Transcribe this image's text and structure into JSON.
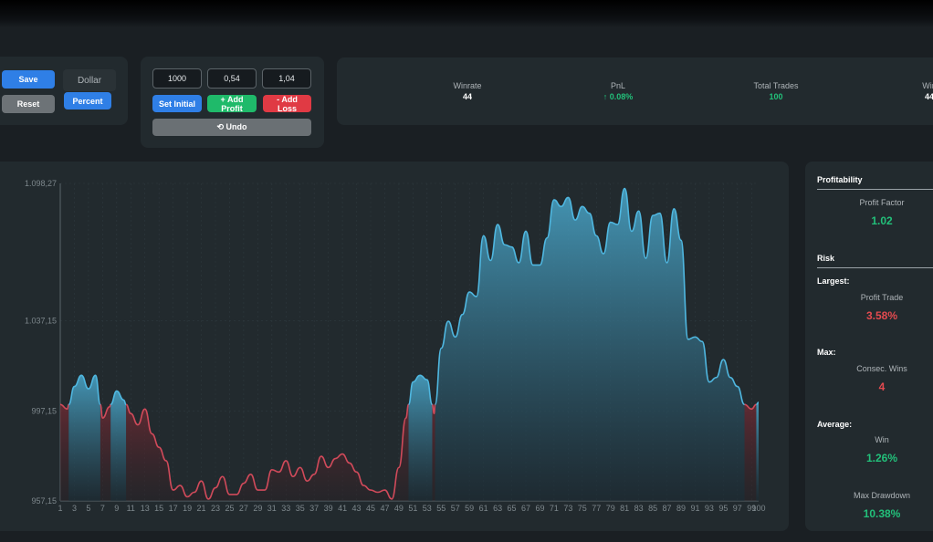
{
  "controls": {
    "save_label": "Save",
    "reset_label": "Reset",
    "dollar_label": "Dollar",
    "percent_label": "Percent"
  },
  "inputs": {
    "initial_value": "1000",
    "profit_value": "0,54",
    "loss_value": "1,04",
    "set_initial_label": "Set Initial",
    "add_profit_label": "+ Add Profit",
    "add_loss_label": "- Add Loss",
    "undo_label": "⟲ Undo"
  },
  "stats": [
    {
      "label": "Winrate",
      "value": "44",
      "color": "#ffffff"
    },
    {
      "label": "PnL",
      "value": "↑ 0.08%",
      "color": "#22c07a"
    },
    {
      "label": "Total Trades",
      "value": "100",
      "color": "#22c07a"
    },
    {
      "label": "Win",
      "value": "44",
      "color": "#ffffff"
    }
  ],
  "sidebar": {
    "profitability_title": "Profitability",
    "profit_factor_label": "Profit Factor",
    "profit_factor_value": "1.02",
    "risk_title": "Risk",
    "largest_title": "Largest:",
    "profit_trade_label": "Profit Trade",
    "profit_trade_value": "3.58%",
    "max_title": "Max:",
    "consec_wins_label": "Consec. Wins",
    "consec_wins_value": "4",
    "average_title": "Average:",
    "avg_win_label": "Win",
    "avg_win_value": "1.26%",
    "max_drawdown_label": "Max Drawdown",
    "max_drawdown_value": "10.38%"
  },
  "colors": {
    "up": "#4fb7e0",
    "down": "#d04a5a",
    "positive": "#22c07a",
    "negative": "#e34a4f",
    "accent": "#2f7fe6"
  },
  "chart_data": {
    "type": "area",
    "baseline": 1000,
    "ylim": [
      957.15,
      1098.27
    ],
    "y_ticks": [
      "1.098,27",
      "1.037,15",
      "997,15",
      "957,15"
    ],
    "y_tick_values": [
      1098.27,
      1037.15,
      997.15,
      957.15
    ],
    "x_ticks": [
      "1",
      "3",
      "5",
      "7",
      "9",
      "11",
      "13",
      "15",
      "17",
      "19",
      "21",
      "23",
      "25",
      "27",
      "29",
      "31",
      "33",
      "35",
      "37",
      "39",
      "41",
      "43",
      "45",
      "47",
      "49",
      "51",
      "53",
      "55",
      "57",
      "59",
      "61",
      "63",
      "65",
      "67",
      "69",
      "71",
      "73",
      "75",
      "77",
      "79",
      "81",
      "83",
      "85",
      "87",
      "89",
      "91",
      "93",
      "95",
      "97",
      "99",
      "100"
    ],
    "x": [
      1,
      2,
      3,
      4,
      5,
      6,
      7,
      8,
      9,
      10,
      11,
      12,
      13,
      14,
      15,
      16,
      17,
      18,
      19,
      20,
      21,
      22,
      23,
      24,
      25,
      26,
      27,
      28,
      29,
      30,
      31,
      32,
      33,
      34,
      35,
      36,
      37,
      38,
      39,
      40,
      41,
      42,
      43,
      44,
      45,
      46,
      47,
      48,
      49,
      50,
      51,
      52,
      53,
      54,
      55,
      56,
      57,
      58,
      59,
      60,
      61,
      62,
      63,
      64,
      65,
      66,
      67,
      68,
      69,
      70,
      71,
      72,
      73,
      74,
      75,
      76,
      77,
      78,
      79,
      80,
      81,
      82,
      83,
      84,
      85,
      86,
      87,
      88,
      89,
      90,
      91,
      92,
      93,
      94,
      95,
      96,
      97,
      98,
      99,
      100
    ],
    "values": [
      1000,
      998,
      1008,
      1013,
      1007,
      1013,
      994,
      999,
      1006,
      1002,
      996,
      991,
      998,
      987,
      981,
      975,
      962,
      964,
      959,
      961,
      966,
      958,
      963,
      968,
      960,
      960,
      965,
      969,
      962,
      962,
      971,
      970,
      975,
      968,
      972,
      966,
      969,
      977,
      972,
      976,
      978,
      974,
      970,
      964,
      962,
      961,
      962,
      958,
      972,
      994,
      1010,
      1013,
      1011,
      996,
      1025,
      1037,
      1030,
      1040,
      1050,
      1048,
      1075,
      1064,
      1080,
      1071,
      1070,
      1063,
      1077,
      1062,
      1062,
      1074,
      1091,
      1088,
      1092,
      1082,
      1088,
      1085,
      1075,
      1067,
      1081,
      1080,
      1096,
      1077,
      1086,
      1065,
      1084,
      1085,
      1063,
      1087,
      1073,
      1029,
      1030,
      1028,
      1010,
      1012,
      1020,
      1012,
      1008,
      1000,
      998,
      1001
    ]
  }
}
